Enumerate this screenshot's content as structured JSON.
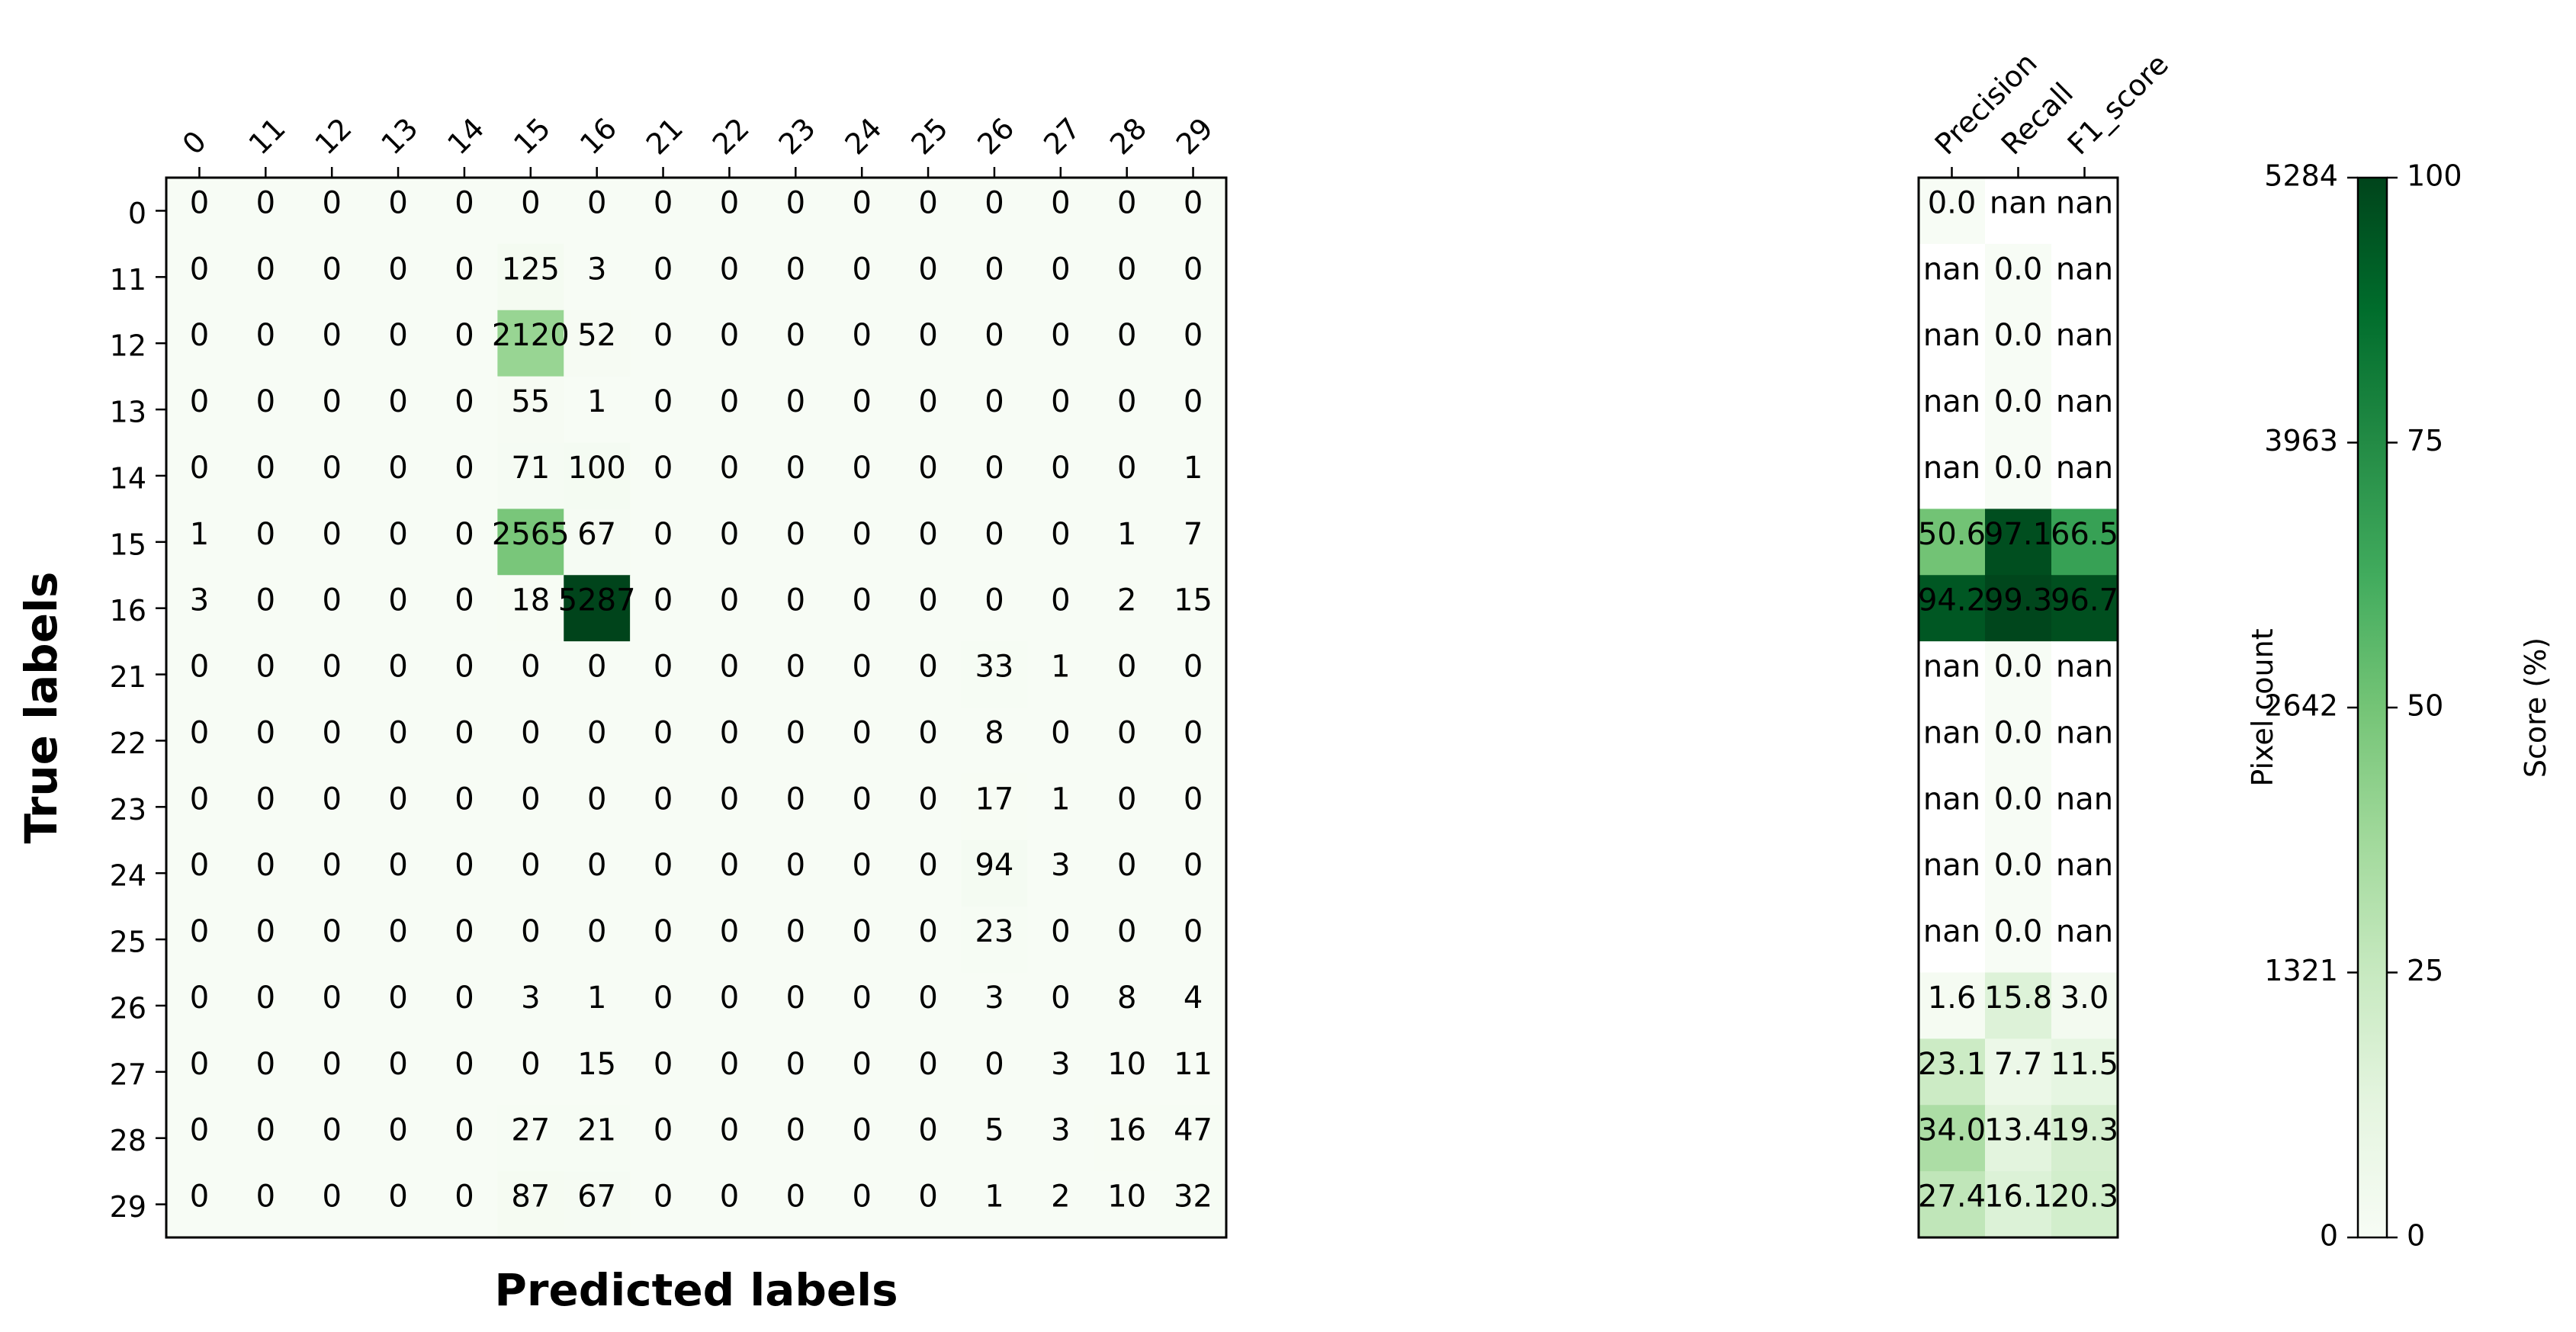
{
  "chart_data": [
    {
      "type": "heatmap",
      "title": "",
      "xlabel": "Predicted labels",
      "ylabel": "True labels",
      "categories_x": [
        "0",
        "11",
        "12",
        "13",
        "14",
        "15",
        "16",
        "21",
        "22",
        "23",
        "24",
        "25",
        "26",
        "27",
        "28",
        "29"
      ],
      "categories_y": [
        "0",
        "11",
        "12",
        "13",
        "14",
        "15",
        "16",
        "21",
        "22",
        "23",
        "24",
        "25",
        "26",
        "27",
        "28",
        "29"
      ],
      "values": [
        [
          0,
          0,
          0,
          0,
          0,
          0,
          0,
          0,
          0,
          0,
          0,
          0,
          0,
          0,
          0,
          0
        ],
        [
          0,
          0,
          0,
          0,
          0,
          125,
          3,
          0,
          0,
          0,
          0,
          0,
          0,
          0,
          0,
          0
        ],
        [
          0,
          0,
          0,
          0,
          0,
          2120,
          52,
          0,
          0,
          0,
          0,
          0,
          0,
          0,
          0,
          0
        ],
        [
          0,
          0,
          0,
          0,
          0,
          55,
          1,
          0,
          0,
          0,
          0,
          0,
          0,
          0,
          0,
          0
        ],
        [
          0,
          0,
          0,
          0,
          0,
          71,
          100,
          0,
          0,
          0,
          0,
          0,
          0,
          0,
          0,
          1
        ],
        [
          1,
          0,
          0,
          0,
          0,
          2565,
          67,
          0,
          0,
          0,
          0,
          0,
          0,
          0,
          1,
          7
        ],
        [
          3,
          0,
          0,
          0,
          0,
          18,
          5287,
          0,
          0,
          0,
          0,
          0,
          0,
          0,
          2,
          15
        ],
        [
          0,
          0,
          0,
          0,
          0,
          0,
          0,
          0,
          0,
          0,
          0,
          0,
          33,
          1,
          0,
          0
        ],
        [
          0,
          0,
          0,
          0,
          0,
          0,
          0,
          0,
          0,
          0,
          0,
          0,
          8,
          0,
          0,
          0
        ],
        [
          0,
          0,
          0,
          0,
          0,
          0,
          0,
          0,
          0,
          0,
          0,
          0,
          17,
          1,
          0,
          0
        ],
        [
          0,
          0,
          0,
          0,
          0,
          0,
          0,
          0,
          0,
          0,
          0,
          0,
          94,
          3,
          0,
          0
        ],
        [
          0,
          0,
          0,
          0,
          0,
          0,
          0,
          0,
          0,
          0,
          0,
          0,
          23,
          0,
          0,
          0
        ],
        [
          0,
          0,
          0,
          0,
          0,
          3,
          1,
          0,
          0,
          0,
          0,
          0,
          3,
          0,
          8,
          4
        ],
        [
          0,
          0,
          0,
          0,
          0,
          0,
          15,
          0,
          0,
          0,
          0,
          0,
          0,
          3,
          10,
          11
        ],
        [
          0,
          0,
          0,
          0,
          0,
          27,
          21,
          0,
          0,
          0,
          0,
          0,
          5,
          3,
          16,
          47
        ],
        [
          0,
          0,
          0,
          0,
          0,
          87,
          67,
          0,
          0,
          0,
          0,
          0,
          1,
          2,
          10,
          32
        ]
      ],
      "colormap": "Greens",
      "vmax": 5284,
      "colorbar": {
        "label": "Pixel count",
        "ticks": [
          "0",
          "1321",
          "2642",
          "3963",
          "5284"
        ]
      }
    },
    {
      "type": "heatmap",
      "title": "",
      "categories_x": [
        "Precision",
        "Recall",
        "F1_score"
      ],
      "categories_y": [
        "0",
        "11",
        "12",
        "13",
        "14",
        "15",
        "16",
        "21",
        "22",
        "23",
        "24",
        "25",
        "26",
        "27",
        "28",
        "29"
      ],
      "values": [
        [
          "0.0",
          "nan",
          "nan"
        ],
        [
          "nan",
          "0.0",
          "nan"
        ],
        [
          "nan",
          "0.0",
          "nan"
        ],
        [
          "nan",
          "0.0",
          "nan"
        ],
        [
          "nan",
          "0.0",
          "nan"
        ],
        [
          "50.6",
          "97.1",
          "66.5"
        ],
        [
          "94.2",
          "99.3",
          "96.7"
        ],
        [
          "nan",
          "0.0",
          "nan"
        ],
        [
          "nan",
          "0.0",
          "nan"
        ],
        [
          "nan",
          "0.0",
          "nan"
        ],
        [
          "nan",
          "0.0",
          "nan"
        ],
        [
          "nan",
          "0.0",
          "nan"
        ],
        [
          "1.6",
          "15.8",
          "3.0"
        ],
        [
          "23.1",
          "7.7",
          "11.5"
        ],
        [
          "34.0",
          "13.4",
          "19.3"
        ],
        [
          "27.4",
          "16.1",
          "20.3"
        ]
      ],
      "colormap": "Greens",
      "vmax": 100,
      "colorbar": {
        "label": "Score (%)",
        "ticks": [
          "0",
          "25",
          "50",
          "75",
          "100"
        ]
      }
    }
  ],
  "colors": {
    "greens": [
      "#f7fcf5",
      "#e5f5e0",
      "#c7e9c0",
      "#a1d99b",
      "#74c476",
      "#41ab5d",
      "#238b45",
      "#006d2c",
      "#00441b"
    ],
    "nan_cell": "#ffffff",
    "axis": "#000000"
  }
}
